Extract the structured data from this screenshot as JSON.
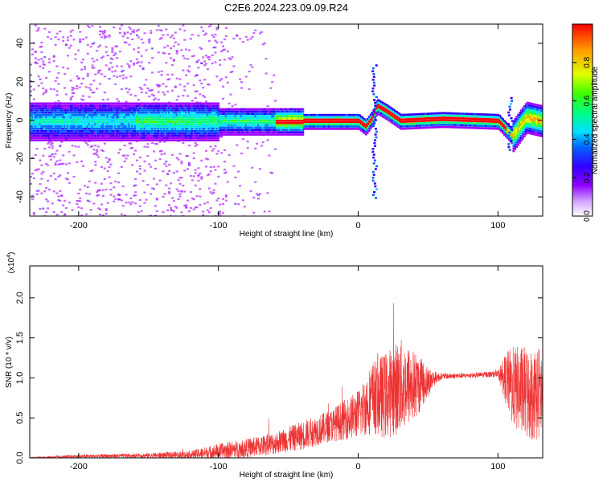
{
  "title": "C2E6.2024.223.09.09.R24",
  "chart_data": [
    {
      "type": "heatmap",
      "title": "C2E6.2024.223.09.09.R24",
      "xlabel": "Height of straight line (km)",
      "ylabel": "Frequency (Hz)",
      "xlim": [
        -235,
        132
      ],
      "ylim": [
        -50,
        50
      ],
      "x_ticks": [
        -200,
        -100,
        0,
        100
      ],
      "y_ticks": [
        -40,
        -20,
        0,
        20,
        40
      ],
      "colorbar": {
        "label": "Normalized spectral amplitude",
        "range": [
          0,
          1
        ],
        "ticks": [
          "0.0",
          "0.2",
          "0.4",
          "0.6",
          "0.8"
        ],
        "colors": [
          "#ffffff",
          "#a000ff",
          "#3000ff",
          "#0066ff",
          "#00e0ff",
          "#00ff80",
          "#50ff00",
          "#e0ff00",
          "#ffa000",
          "#ff0000"
        ]
      },
      "ridge_centerline": [
        [
          -235,
          0
        ],
        [
          -60,
          0
        ],
        [
          0,
          0
        ],
        [
          5,
          -3
        ],
        [
          10,
          2
        ],
        [
          13,
          8
        ],
        [
          20,
          5
        ],
        [
          30,
          0
        ],
        [
          60,
          1
        ],
        [
          100,
          0
        ],
        [
          110,
          -8
        ],
        [
          120,
          2
        ],
        [
          132,
          0
        ]
      ]
    },
    {
      "type": "line",
      "xlabel": "Height of straight line (km)",
      "ylabel": "SNR (10 * v/v)",
      "y_multiplier": "(x10",
      "y_multiplier_exp": "4",
      "y_multiplier_close": ")",
      "xlim": [
        -235,
        132
      ],
      "ylim": [
        0,
        2.4
      ],
      "x_ticks": [
        -200,
        -100,
        0,
        100
      ],
      "y_ticks": [
        "0.0",
        "0.5",
        "1.0",
        "1.5",
        "2.0"
      ],
      "color": "#ee3333",
      "envelope": {
        "x": [
          -235,
          -200,
          -150,
          -120,
          -100,
          -80,
          -60,
          -40,
          -20,
          0,
          10,
          20,
          30,
          40,
          50,
          55,
          60,
          80,
          100,
          105,
          110,
          120,
          132
        ],
        "base": [
          0.0,
          0.02,
          0.03,
          0.04,
          0.08,
          0.12,
          0.18,
          0.28,
          0.4,
          0.55,
          0.75,
          0.78,
          0.9,
          0.9,
          0.95,
          1.0,
          1.02,
          1.03,
          1.05,
          1.0,
          0.9,
          0.8,
          0.8
        ],
        "amp": [
          0.01,
          0.02,
          0.03,
          0.05,
          0.1,
          0.12,
          0.14,
          0.18,
          0.2,
          0.3,
          0.45,
          0.55,
          0.6,
          0.45,
          0.2,
          0.08,
          0.04,
          0.03,
          0.04,
          0.3,
          0.5,
          0.6,
          0.6
        ]
      }
    }
  ]
}
